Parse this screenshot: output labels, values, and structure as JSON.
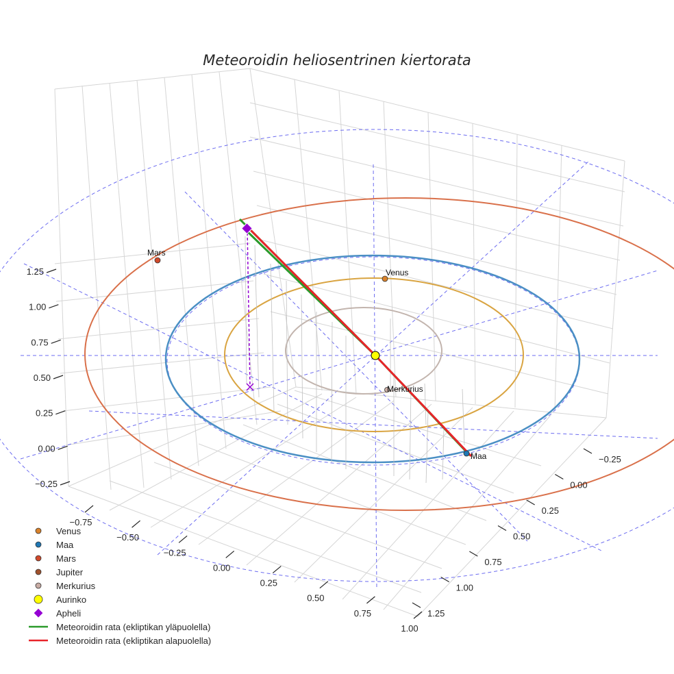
{
  "chart_data": {
    "type": "3d-line",
    "title": "Meteoroidin heliosentrinen kiertorata",
    "axes": {
      "x_ticks": [
        "−0.75",
        "−0.50",
        "−0.25",
        "0.00",
        "0.25",
        "0.50",
        "0.75",
        "1.00"
      ],
      "y_ticks": [
        "−0.25",
        "0.00",
        "0.25",
        "0.50",
        "0.75",
        "1.00",
        "1.25"
      ],
      "z_ticks": [
        "−0.25",
        "0.00",
        "0.25",
        "0.50",
        "0.75",
        "1.00",
        "1.25"
      ],
      "grid": true
    },
    "orbits": [
      {
        "name": "Merkurius",
        "radius_au": 0.39,
        "color": "#c2b4ad"
      },
      {
        "name": "Venus",
        "radius_au": 0.72,
        "color": "#d9a441"
      },
      {
        "name": "Maa",
        "radius_au": 1.0,
        "color": "#4a8fc4"
      },
      {
        "name": "Mars",
        "radius_au": 1.52,
        "color": "#d9704a"
      }
    ],
    "points": [
      {
        "name": "Venus",
        "label": "Venus",
        "color": "#d9822b"
      },
      {
        "name": "Maa",
        "label": "Maa",
        "color": "#1f77b4"
      },
      {
        "name": "Mars",
        "label": "Mars",
        "color": "#d14a2b"
      },
      {
        "name": "Merkurius",
        "label": "Merkurius",
        "color": "#c8aca4"
      },
      {
        "name": "Aurinko",
        "label": "",
        "color": "#ffff00"
      }
    ],
    "series": [
      {
        "name": "Meteoroidin rata (ekliptikan yläpuolella)",
        "color": "#2a9a2a"
      },
      {
        "name": "Meteoroidin rata (ekliptikan alapuolella)",
        "color": "#e8242a"
      }
    ],
    "aphelion": {
      "name": "Apheli",
      "color": "#9400d3"
    },
    "legend_position": "bottom-left",
    "legend": [
      {
        "label": "Venus",
        "color": "#d9822b",
        "marker": "circle"
      },
      {
        "label": "Maa",
        "color": "#1f77b4",
        "marker": "circle"
      },
      {
        "label": "Mars",
        "color": "#d14a2b",
        "marker": "circle"
      },
      {
        "label": "Jupiter",
        "color": "#a0522d",
        "marker": "circle"
      },
      {
        "label": "Merkurius",
        "color": "#c8aca4",
        "marker": "circle"
      },
      {
        "label": "Aurinko",
        "color": "#ffff00",
        "marker": "big-circle"
      },
      {
        "label": "Apheli",
        "color": "#9400d3",
        "marker": "diamond"
      },
      {
        "label": "Meteoroidin rata (ekliptikan yläpuolella)",
        "color": "#2a9a2a",
        "marker": "line"
      },
      {
        "label": "Meteoroidin rata (ekliptikan alapuolella)",
        "color": "#e8242a",
        "marker": "line"
      }
    ]
  }
}
